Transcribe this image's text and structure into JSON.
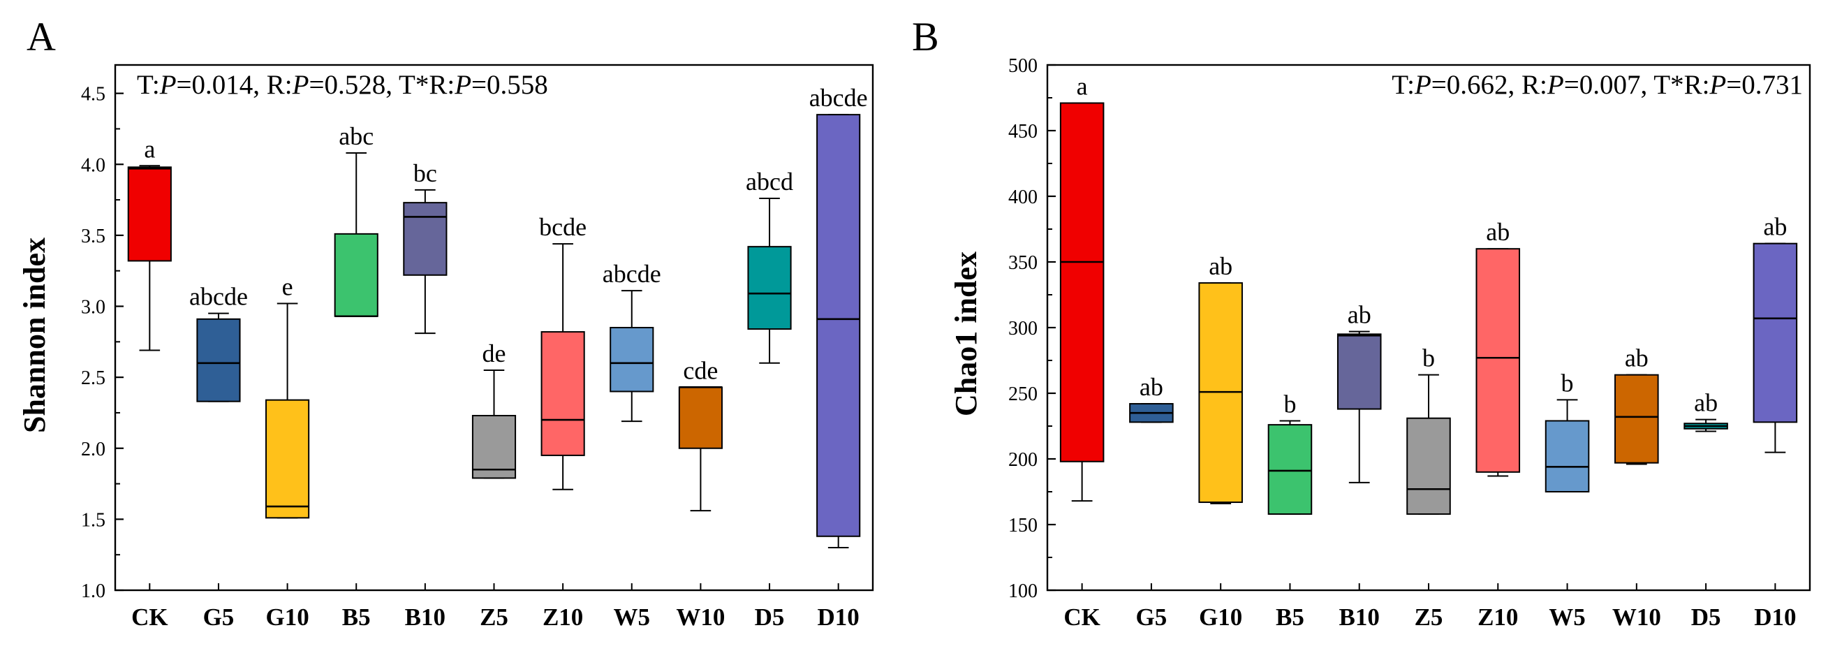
{
  "chart_data": [
    {
      "panel": "A",
      "type": "boxplot",
      "ylabel": "Shannon index",
      "ylim": [
        1.0,
        4.7
      ],
      "yticks": [
        "1.0",
        "1.5",
        "2.0",
        "2.5",
        "3.0",
        "3.5",
        "4.0",
        "4.5"
      ],
      "stats": {
        "t_label": "T:",
        "t_p": "=0.014,",
        "r_label": "R:",
        "r_p": "=0.528,",
        "tr_label": "T*R:",
        "tr_p": "=0.558",
        "p_symbol": "P"
      },
      "stats_position": "top-left",
      "categories": [
        "CK",
        "G5",
        "G10",
        "B5",
        "B10",
        "Z5",
        "Z10",
        "W5",
        "W10",
        "D5",
        "D10"
      ],
      "boxes": [
        {
          "name": "CK",
          "color": "#f00000",
          "q1": 3.32,
          "median": 3.97,
          "q3": 3.98,
          "whisker_low": 2.69,
          "whisker_high": 3.99,
          "letter": "a"
        },
        {
          "name": "G5",
          "color": "#2f5f96",
          "q1": 2.33,
          "median": 2.6,
          "q3": 2.91,
          "whisker_low": 2.33,
          "whisker_high": 2.95,
          "letter": "abcde"
        },
        {
          "name": "G10",
          "color": "#ffc11a",
          "q1": 1.51,
          "median": 1.59,
          "q3": 2.34,
          "whisker_low": 1.51,
          "whisker_high": 3.02,
          "letter": "e"
        },
        {
          "name": "B5",
          "color": "#3cc36e",
          "q1": 2.93,
          "median": 2.93,
          "q3": 3.51,
          "whisker_low": 2.93,
          "whisker_high": 4.08,
          "letter": "abc"
        },
        {
          "name": "B10",
          "color": "#66669a",
          "q1": 3.22,
          "median": 3.63,
          "q3": 3.73,
          "whisker_low": 2.81,
          "whisker_high": 3.82,
          "letter": "bc"
        },
        {
          "name": "Z5",
          "color": "#9a9a9a",
          "q1": 1.79,
          "median": 1.85,
          "q3": 2.23,
          "whisker_low": 1.79,
          "whisker_high": 2.55,
          "letter": "de"
        },
        {
          "name": "Z10",
          "color": "#ff6666",
          "q1": 1.95,
          "median": 2.2,
          "q3": 2.82,
          "whisker_low": 1.71,
          "whisker_high": 3.44,
          "letter": "bcde"
        },
        {
          "name": "W5",
          "color": "#6699cc",
          "q1": 2.4,
          "median": 2.6,
          "q3": 2.85,
          "whisker_low": 2.19,
          "whisker_high": 3.11,
          "letter": "abcde"
        },
        {
          "name": "W10",
          "color": "#cc6600",
          "q1": 2.0,
          "median": 2.43,
          "q3": 2.43,
          "whisker_low": 1.56,
          "whisker_high": 2.43,
          "letter": "cde"
        },
        {
          "name": "D5",
          "color": "#009999",
          "q1": 2.84,
          "median": 3.09,
          "q3": 3.42,
          "whisker_low": 2.6,
          "whisker_high": 3.76,
          "letter": "abcd"
        },
        {
          "name": "D10",
          "color": "#6b66c2",
          "q1": 1.38,
          "median": 2.91,
          "q3": 4.35,
          "whisker_low": 1.3,
          "whisker_high": 4.35,
          "letter": "abcde"
        }
      ]
    },
    {
      "panel": "B",
      "type": "boxplot",
      "ylabel": "Chao1 index",
      "ylim": [
        100,
        500
      ],
      "yticks": [
        "100",
        "150",
        "200",
        "250",
        "300",
        "350",
        "400",
        "450",
        "500"
      ],
      "stats": {
        "t_label": "T:",
        "t_p": "=0.662,",
        "r_label": "R:",
        "r_p": "=0.007,",
        "tr_label": "T*R:",
        "tr_p": "=0.731",
        "p_symbol": "P"
      },
      "stats_position": "top-right",
      "categories": [
        "CK",
        "G5",
        "G10",
        "B5",
        "B10",
        "Z5",
        "Z10",
        "W5",
        "W10",
        "D5",
        "D10"
      ],
      "boxes": [
        {
          "name": "CK",
          "color": "#f00000",
          "q1": 198,
          "median": 350,
          "q3": 471,
          "whisker_low": 168,
          "whisker_high": 471,
          "letter": "a"
        },
        {
          "name": "G5",
          "color": "#2f5f96",
          "q1": 228,
          "median": 235,
          "q3": 242,
          "whisker_low": 228,
          "whisker_high": 242,
          "letter": "ab"
        },
        {
          "name": "G10",
          "color": "#ffc11a",
          "q1": 167,
          "median": 251,
          "q3": 334,
          "whisker_low": 166,
          "whisker_high": 334,
          "letter": "ab"
        },
        {
          "name": "B5",
          "color": "#3cc36e",
          "q1": 158,
          "median": 191,
          "q3": 226,
          "whisker_low": 158,
          "whisker_high": 229,
          "letter": "b"
        },
        {
          "name": "B10",
          "color": "#66669a",
          "q1": 238,
          "median": 294,
          "q3": 295,
          "whisker_low": 182,
          "whisker_high": 297,
          "letter": "ab"
        },
        {
          "name": "Z5",
          "color": "#9a9a9a",
          "q1": 158,
          "median": 177,
          "q3": 231,
          "whisker_low": 158,
          "whisker_high": 264,
          "letter": "b"
        },
        {
          "name": "Z10",
          "color": "#ff6666",
          "q1": 190,
          "median": 277,
          "q3": 360,
          "whisker_low": 187,
          "whisker_high": 360,
          "letter": "ab"
        },
        {
          "name": "W5",
          "color": "#6699cc",
          "q1": 175,
          "median": 194,
          "q3": 229,
          "whisker_low": 175,
          "whisker_high": 245,
          "letter": "b"
        },
        {
          "name": "W10",
          "color": "#cc6600",
          "q1": 197,
          "median": 232,
          "q3": 264,
          "whisker_low": 196,
          "whisker_high": 264,
          "letter": "ab"
        },
        {
          "name": "D5",
          "color": "#009999",
          "q1": 223,
          "median": 225,
          "q3": 227,
          "whisker_low": 221,
          "whisker_high": 230,
          "letter": "ab"
        },
        {
          "name": "D10",
          "color": "#6b66c2",
          "q1": 228,
          "median": 307,
          "q3": 364,
          "whisker_low": 205,
          "whisker_high": 364,
          "letter": "ab"
        }
      ]
    }
  ]
}
